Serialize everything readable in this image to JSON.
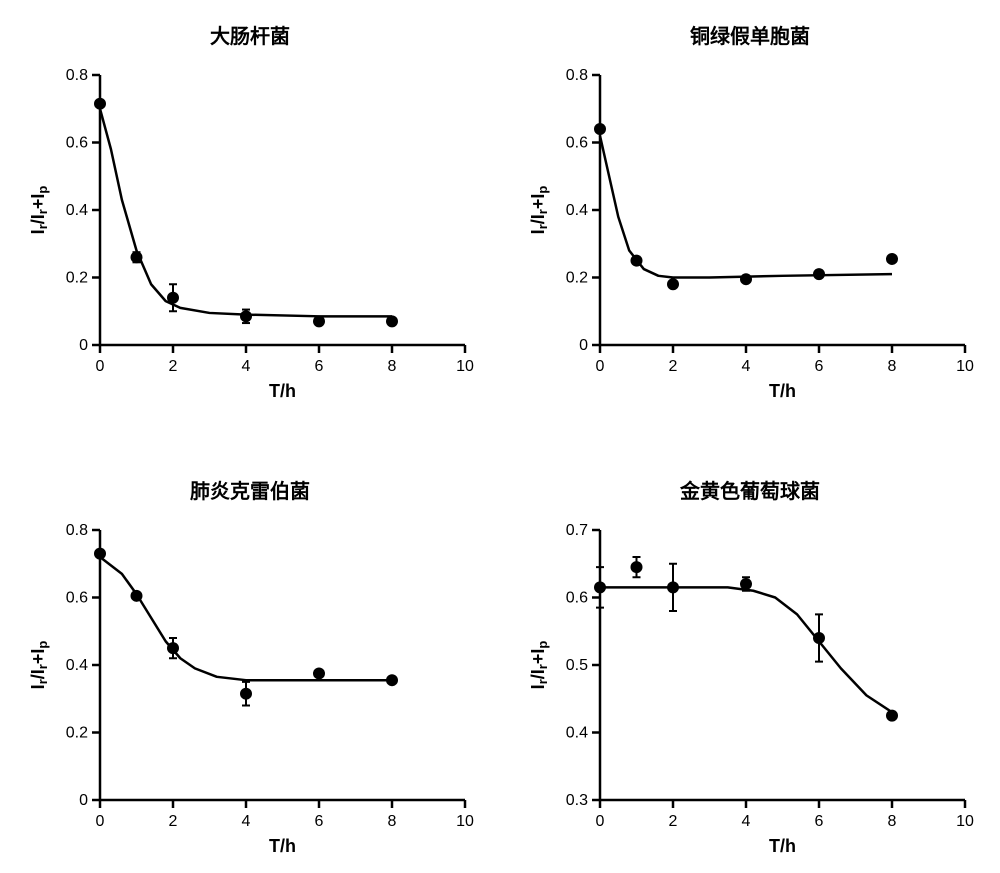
{
  "global": {
    "background_color": "#ffffff",
    "axis_color": "#000000",
    "marker_color": "#000000",
    "title_fontsize": 20,
    "label_fontsize": 18,
    "tick_fontsize": 16,
    "axis_line_width": 2.5,
    "tick_line_width": 2.5,
    "curve_line_width": 2.5,
    "marker_radius": 6,
    "error_cap_width": 8,
    "error_line_width": 2,
    "xlabel": "T/h",
    "ylabel": "Ir/Ir+Ip",
    "ylabel_plain": "Ir/Ir+Ip"
  },
  "panels": [
    {
      "key": "ecoli",
      "title": "大肠杆菌",
      "xlim": [
        0,
        10
      ],
      "xticks": [
        0,
        2,
        4,
        6,
        8,
        10
      ],
      "ylim": [
        0.0,
        0.8
      ],
      "yticks": [
        0.0,
        0.2,
        0.4,
        0.6,
        0.8
      ],
      "points": [
        {
          "x": 0,
          "y": 0.715,
          "err": 0
        },
        {
          "x": 1,
          "y": 0.26,
          "err": 0.015
        },
        {
          "x": 2,
          "y": 0.14,
          "err": 0.04
        },
        {
          "x": 4,
          "y": 0.085,
          "err": 0.02
        },
        {
          "x": 6,
          "y": 0.07,
          "err": 0
        },
        {
          "x": 8,
          "y": 0.07,
          "err": 0
        }
      ],
      "curve": [
        {
          "x": 0,
          "y": 0.7
        },
        {
          "x": 0.3,
          "y": 0.58
        },
        {
          "x": 0.6,
          "y": 0.43
        },
        {
          "x": 1.0,
          "y": 0.28
        },
        {
          "x": 1.4,
          "y": 0.18
        },
        {
          "x": 1.8,
          "y": 0.13
        },
        {
          "x": 2.2,
          "y": 0.11
        },
        {
          "x": 3.0,
          "y": 0.095
        },
        {
          "x": 4.0,
          "y": 0.09
        },
        {
          "x": 6.0,
          "y": 0.085
        },
        {
          "x": 8.0,
          "y": 0.085
        }
      ]
    },
    {
      "key": "paeruginosa",
      "title": "铜绿假单胞菌",
      "xlim": [
        0,
        10
      ],
      "xticks": [
        0,
        2,
        4,
        6,
        8,
        10
      ],
      "ylim": [
        0.0,
        0.8
      ],
      "yticks": [
        0.0,
        0.2,
        0.4,
        0.6,
        0.8
      ],
      "points": [
        {
          "x": 0,
          "y": 0.64,
          "err": 0
        },
        {
          "x": 1,
          "y": 0.25,
          "err": 0
        },
        {
          "x": 2,
          "y": 0.18,
          "err": 0
        },
        {
          "x": 4,
          "y": 0.195,
          "err": 0
        },
        {
          "x": 6,
          "y": 0.21,
          "err": 0
        },
        {
          "x": 8,
          "y": 0.255,
          "err": 0
        }
      ],
      "curve": [
        {
          "x": 0,
          "y": 0.62
        },
        {
          "x": 0.25,
          "y": 0.5
        },
        {
          "x": 0.5,
          "y": 0.38
        },
        {
          "x": 0.8,
          "y": 0.28
        },
        {
          "x": 1.2,
          "y": 0.225
        },
        {
          "x": 1.6,
          "y": 0.205
        },
        {
          "x": 2.0,
          "y": 0.2
        },
        {
          "x": 3.0,
          "y": 0.2
        },
        {
          "x": 5.0,
          "y": 0.205
        },
        {
          "x": 8.0,
          "y": 0.21
        }
      ]
    },
    {
      "key": "kpneumoniae",
      "title": "肺炎克雷伯菌",
      "xlim": [
        0,
        10
      ],
      "xticks": [
        0,
        2,
        4,
        6,
        8,
        10
      ],
      "ylim": [
        0.0,
        0.8
      ],
      "yticks": [
        0.0,
        0.2,
        0.4,
        0.6,
        0.8
      ],
      "points": [
        {
          "x": 0,
          "y": 0.73,
          "err": 0
        },
        {
          "x": 1,
          "y": 0.605,
          "err": 0
        },
        {
          "x": 2,
          "y": 0.45,
          "err": 0.03
        },
        {
          "x": 4,
          "y": 0.315,
          "err": 0.035
        },
        {
          "x": 6,
          "y": 0.375,
          "err": 0
        },
        {
          "x": 8,
          "y": 0.355,
          "err": 0
        }
      ],
      "curve": [
        {
          "x": 0,
          "y": 0.72
        },
        {
          "x": 0.6,
          "y": 0.67
        },
        {
          "x": 1.0,
          "y": 0.61
        },
        {
          "x": 1.4,
          "y": 0.54
        },
        {
          "x": 1.8,
          "y": 0.47
        },
        {
          "x": 2.2,
          "y": 0.42
        },
        {
          "x": 2.6,
          "y": 0.39
        },
        {
          "x": 3.2,
          "y": 0.365
        },
        {
          "x": 4.0,
          "y": 0.355
        },
        {
          "x": 6.0,
          "y": 0.355
        },
        {
          "x": 8.0,
          "y": 0.355
        }
      ]
    },
    {
      "key": "saureus",
      "title": "金黄色葡萄球菌",
      "xlim": [
        0,
        10
      ],
      "xticks": [
        0,
        2,
        4,
        6,
        8,
        10
      ],
      "ylim": [
        0.3,
        0.7
      ],
      "yticks": [
        0.3,
        0.4,
        0.5,
        0.6,
        0.7
      ],
      "points": [
        {
          "x": 0,
          "y": 0.615,
          "err": 0.03
        },
        {
          "x": 1,
          "y": 0.645,
          "err": 0.015
        },
        {
          "x": 2,
          "y": 0.615,
          "err": 0.035
        },
        {
          "x": 4,
          "y": 0.62,
          "err": 0.01
        },
        {
          "x": 6,
          "y": 0.54,
          "err": 0.035
        },
        {
          "x": 8,
          "y": 0.425,
          "err": 0
        }
      ],
      "curve": [
        {
          "x": 0,
          "y": 0.615
        },
        {
          "x": 2.0,
          "y": 0.615
        },
        {
          "x": 3.5,
          "y": 0.615
        },
        {
          "x": 4.2,
          "y": 0.61
        },
        {
          "x": 4.8,
          "y": 0.6
        },
        {
          "x": 5.4,
          "y": 0.575
        },
        {
          "x": 6.0,
          "y": 0.535
        },
        {
          "x": 6.6,
          "y": 0.495
        },
        {
          "x": 7.3,
          "y": 0.455
        },
        {
          "x": 8.0,
          "y": 0.43
        }
      ]
    }
  ]
}
